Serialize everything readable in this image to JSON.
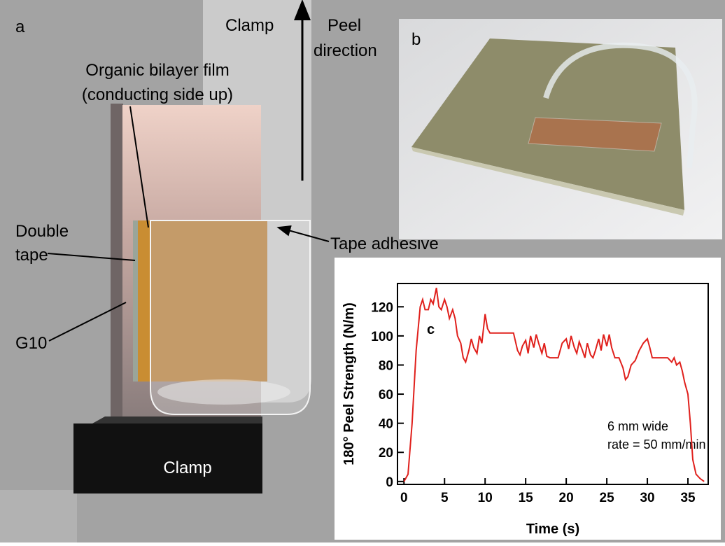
{
  "panel_a": {
    "label": "a",
    "clamp_top": "Clamp",
    "peel_direction": [
      "Peel",
      "direction"
    ],
    "film": [
      "Organic bilayer film",
      "(conducting side up)"
    ],
    "double_tape": [
      "Double",
      "tape"
    ],
    "tape_adhesive": "Tape adhesive",
    "g10": "G10",
    "clamp_block": "Clamp"
  },
  "panel_b": {
    "label": "b"
  },
  "chart_data": {
    "type": "line",
    "panel_label": "c",
    "xlabel": "Time (s)",
    "ylabel": "180° Peel Strength (N/m)",
    "annotation": [
      "6 mm wide",
      "rate = 50 mm/min"
    ],
    "color": "#e0201c",
    "xlim": [
      -0.8,
      37.5
    ],
    "ylim": [
      -2,
      136
    ],
    "xticks": [
      0,
      5,
      10,
      15,
      20,
      25,
      30,
      35
    ],
    "yticks": [
      0,
      20,
      40,
      60,
      80,
      100,
      120
    ],
    "x": [
      0,
      0.5,
      1,
      1.5,
      2,
      2.3,
      2.6,
      3,
      3.3,
      3.6,
      4,
      4.3,
      4.6,
      5,
      5.3,
      5.6,
      6,
      6.3,
      6.6,
      7,
      7.3,
      7.6,
      8,
      8.3,
      8.6,
      9,
      9.3,
      9.6,
      10,
      10.3,
      10.6,
      11,
      12,
      13,
      13.5,
      14,
      14.3,
      14.6,
      15,
      15.3,
      15.6,
      16,
      16.3,
      16.6,
      17,
      17.3,
      17.6,
      18,
      19,
      19.5,
      20,
      20.3,
      20.6,
      21,
      21.3,
      21.6,
      22,
      22.3,
      22.6,
      23,
      23.3,
      23.6,
      24,
      24.3,
      24.6,
      25,
      25.3,
      25.6,
      26,
      26.5,
      27,
      27.3,
      27.6,
      28,
      28.5,
      29,
      29.5,
      30,
      30.3,
      30.6,
      31,
      32,
      32.5,
      33,
      33.3,
      33.6,
      34,
      34.3,
      34.6,
      35,
      35.3,
      35.6,
      36,
      36.5,
      37
    ],
    "values": [
      0,
      5,
      40,
      90,
      120,
      125,
      118,
      118,
      125,
      122,
      133,
      120,
      118,
      125,
      120,
      112,
      118,
      112,
      100,
      95,
      85,
      82,
      90,
      98,
      92,
      88,
      100,
      95,
      115,
      105,
      102,
      102,
      102,
      102,
      102,
      90,
      87,
      93,
      97,
      88,
      100,
      92,
      101,
      95,
      88,
      95,
      86,
      85,
      85,
      95,
      98,
      91,
      100,
      92,
      88,
      96,
      90,
      85,
      95,
      87,
      85,
      90,
      98,
      90,
      101,
      93,
      101,
      92,
      85,
      85,
      78,
      70,
      72,
      80,
      83,
      90,
      95,
      98,
      92,
      85,
      85,
      85,
      85,
      82,
      85,
      80,
      82,
      76,
      68,
      60,
      40,
      15,
      5,
      2,
      0
    ]
  }
}
